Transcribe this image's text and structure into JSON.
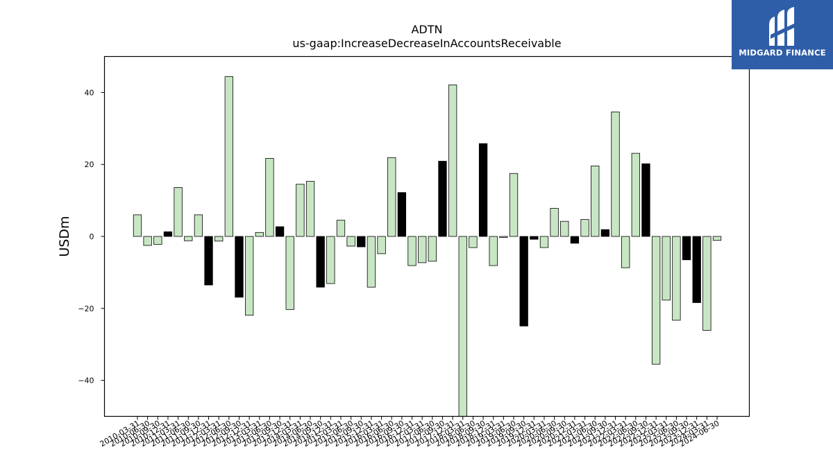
{
  "brand": {
    "name": "MIDGARD FINANCE",
    "bg_color": "#2f5ea8"
  },
  "chart_data": {
    "type": "bar",
    "title": "ADTN",
    "subtitle": "us-gaap:IncreaseDecreaseInAccountsReceivable",
    "ylabel": "USDm",
    "xlabel": "",
    "ylim": [
      -50,
      50
    ],
    "yticks": [
      -40,
      -20,
      0,
      20,
      40
    ],
    "colors": {
      "positive_fill": "#c8e6c4",
      "negative_fill": "#000000",
      "edge": "#000000"
    },
    "categories": [
      "2010-03-31",
      "2010-06-30",
      "2010-09-30",
      "2010-12-31",
      "2011-03-31",
      "2011-06-30",
      "2011-09-30",
      "2011-12-31",
      "2012-03-31",
      "2012-06-30",
      "2012-09-30",
      "2012-12-31",
      "2013-03-31",
      "2013-06-30",
      "2013-09-30",
      "2013-12-31",
      "2014-03-31",
      "2014-06-30",
      "2014-09-30",
      "2014-12-31",
      "2015-03-31",
      "2015-06-30",
      "2015-09-30",
      "2015-12-31",
      "2016-03-31",
      "2016-06-30",
      "2016-09-30",
      "2016-12-31",
      "2017-03-31",
      "2017-06-30",
      "2017-09-30",
      "2017-12-31",
      "2018-03-31",
      "2018-06-30",
      "2018-09-30",
      "2018-12-31",
      "2019-03-31",
      "2019-06-30",
      "2019-09-30",
      "2019-12-31",
      "2020-03-31",
      "2020-06-30",
      "2020-09-30",
      "2020-12-31",
      "2021-03-31",
      "2021-06-30",
      "2021-09-30",
      "2021-12-31",
      "2022-03-31",
      "2022-06-30",
      "2022-09-30",
      "2022-12-31",
      "2023-03-31",
      "2023-06-30",
      "2023-09-30",
      "2023-12-31",
      "2024-03-31",
      "2024-06-30"
    ],
    "values": [
      6.0,
      -2.5,
      -2.2,
      1.3,
      13.6,
      -1.2,
      6.0,
      -13.5,
      -1.3,
      44.4,
      -16.9,
      -21.9,
      1.1,
      21.7,
      2.7,
      -20.3,
      14.5,
      15.3,
      -14.1,
      -13.1,
      4.5,
      -2.7,
      -2.9,
      -14.1,
      -4.8,
      21.9,
      12.2,
      -8.1,
      -7.3,
      -6.9,
      20.9,
      42.1,
      -50.0,
      -3.1,
      25.8,
      -8.1,
      -0.3,
      17.5,
      -24.9,
      -0.8,
      -3.1,
      7.8,
      4.2,
      -1.9,
      4.7,
      19.6,
      1.9,
      34.6,
      -8.7,
      23.1,
      20.2,
      -35.5,
      -17.7,
      -23.3,
      -6.5,
      -18.4,
      -26.1,
      -1.1
    ],
    "highlighted": [
      "2010-12-31",
      "2011-12-31",
      "2012-09-30",
      "2013-09-30",
      "2014-09-30",
      "2015-09-30",
      "2016-09-30",
      "2017-09-30",
      "2018-09-30",
      "2019-09-30",
      "2019-12-31",
      "2020-12-31",
      "2021-09-30",
      "2022-09-30",
      "2023-09-30",
      "2023-12-31"
    ],
    "grid": false,
    "legend": "none"
  }
}
